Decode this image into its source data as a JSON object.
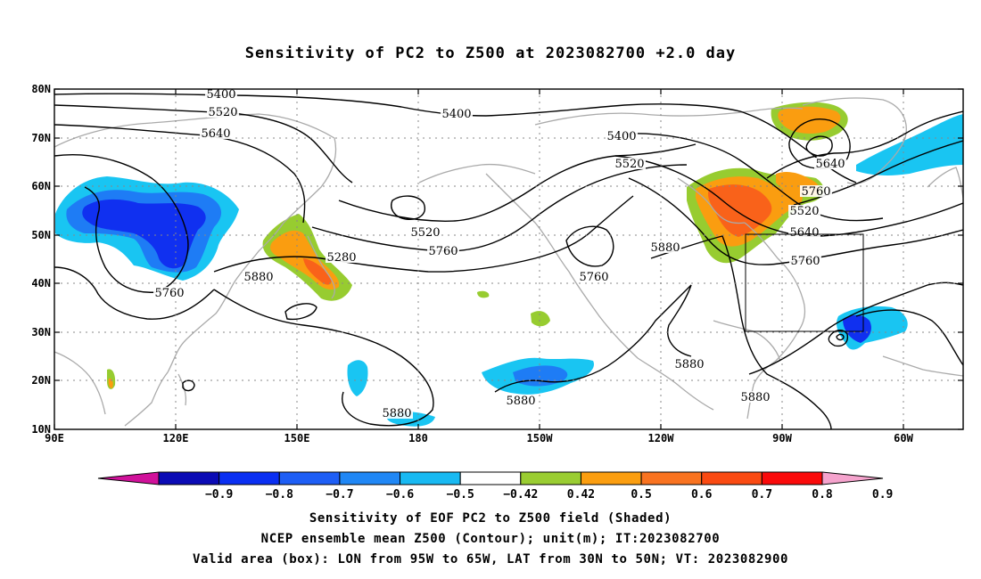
{
  "title": "Sensitivity of PC2 to Z500 at 2023082700 +2.0 day",
  "map": {
    "lon_labels": [
      "90E",
      "120E",
      "150E",
      "180",
      "150W",
      "120W",
      "90W",
      "60W"
    ],
    "lat_labels": [
      "80N",
      "70N",
      "60N",
      "50N",
      "40N",
      "30N",
      "20N",
      "10N"
    ],
    "lon_range": [
      "90E",
      "40W"
    ],
    "lat_range": [
      "10N",
      "80N"
    ],
    "grid": "dotted",
    "contour_labels": [
      "5400",
      "5520",
      "5640",
      "5400",
      "5520",
      "5760",
      "5280",
      "5400",
      "5520",
      "5640",
      "5760",
      "5520",
      "5640",
      "5760",
      "5880",
      "5880",
      "5760",
      "5760",
      "5880",
      "5880",
      "5880",
      "5880"
    ],
    "valid_box": {
      "lon_from": "95W",
      "lon_to": "65W",
      "lat_from": "30N",
      "lat_to": "50N"
    },
    "colors": {
      "coastline": "#aaaaaa",
      "contour": "#000000",
      "neg_strong": "#1030f0",
      "neg_mid": "#1e7cf5",
      "neg_light": "#19c5f2",
      "pos_green": "#97cc30",
      "pos_orange": "#fa9d10",
      "pos_dark_orange": "#f9621a"
    }
  },
  "colorbar": {
    "labels": [
      "-0.9",
      "-0.8",
      "-0.7",
      "-0.6",
      "-0.5",
      "-0.42",
      "0.42",
      "0.5",
      "0.6",
      "0.7",
      "0.8",
      "0.9"
    ],
    "colors": [
      "#0b0bb5",
      "#0a2ff2",
      "#1e5ef5",
      "#2087f5",
      "#18b9f2",
      "#ffffff",
      "#9acd32",
      "#fb9e10",
      "#f97320",
      "#fa4a12",
      "#fa0a0a"
    ],
    "end_left": "#d0119a",
    "end_right": "#f5a3cd"
  },
  "captions": [
    "Sensitivity of EOF PC2 to Z500 field (Shaded)",
    "NCEP ensemble mean Z500 (Contour); unit(m); IT:2023082700",
    "Valid area (box): LON from 95W to 65W, LAT from 30N to 50N; VT: 2023082900"
  ]
}
